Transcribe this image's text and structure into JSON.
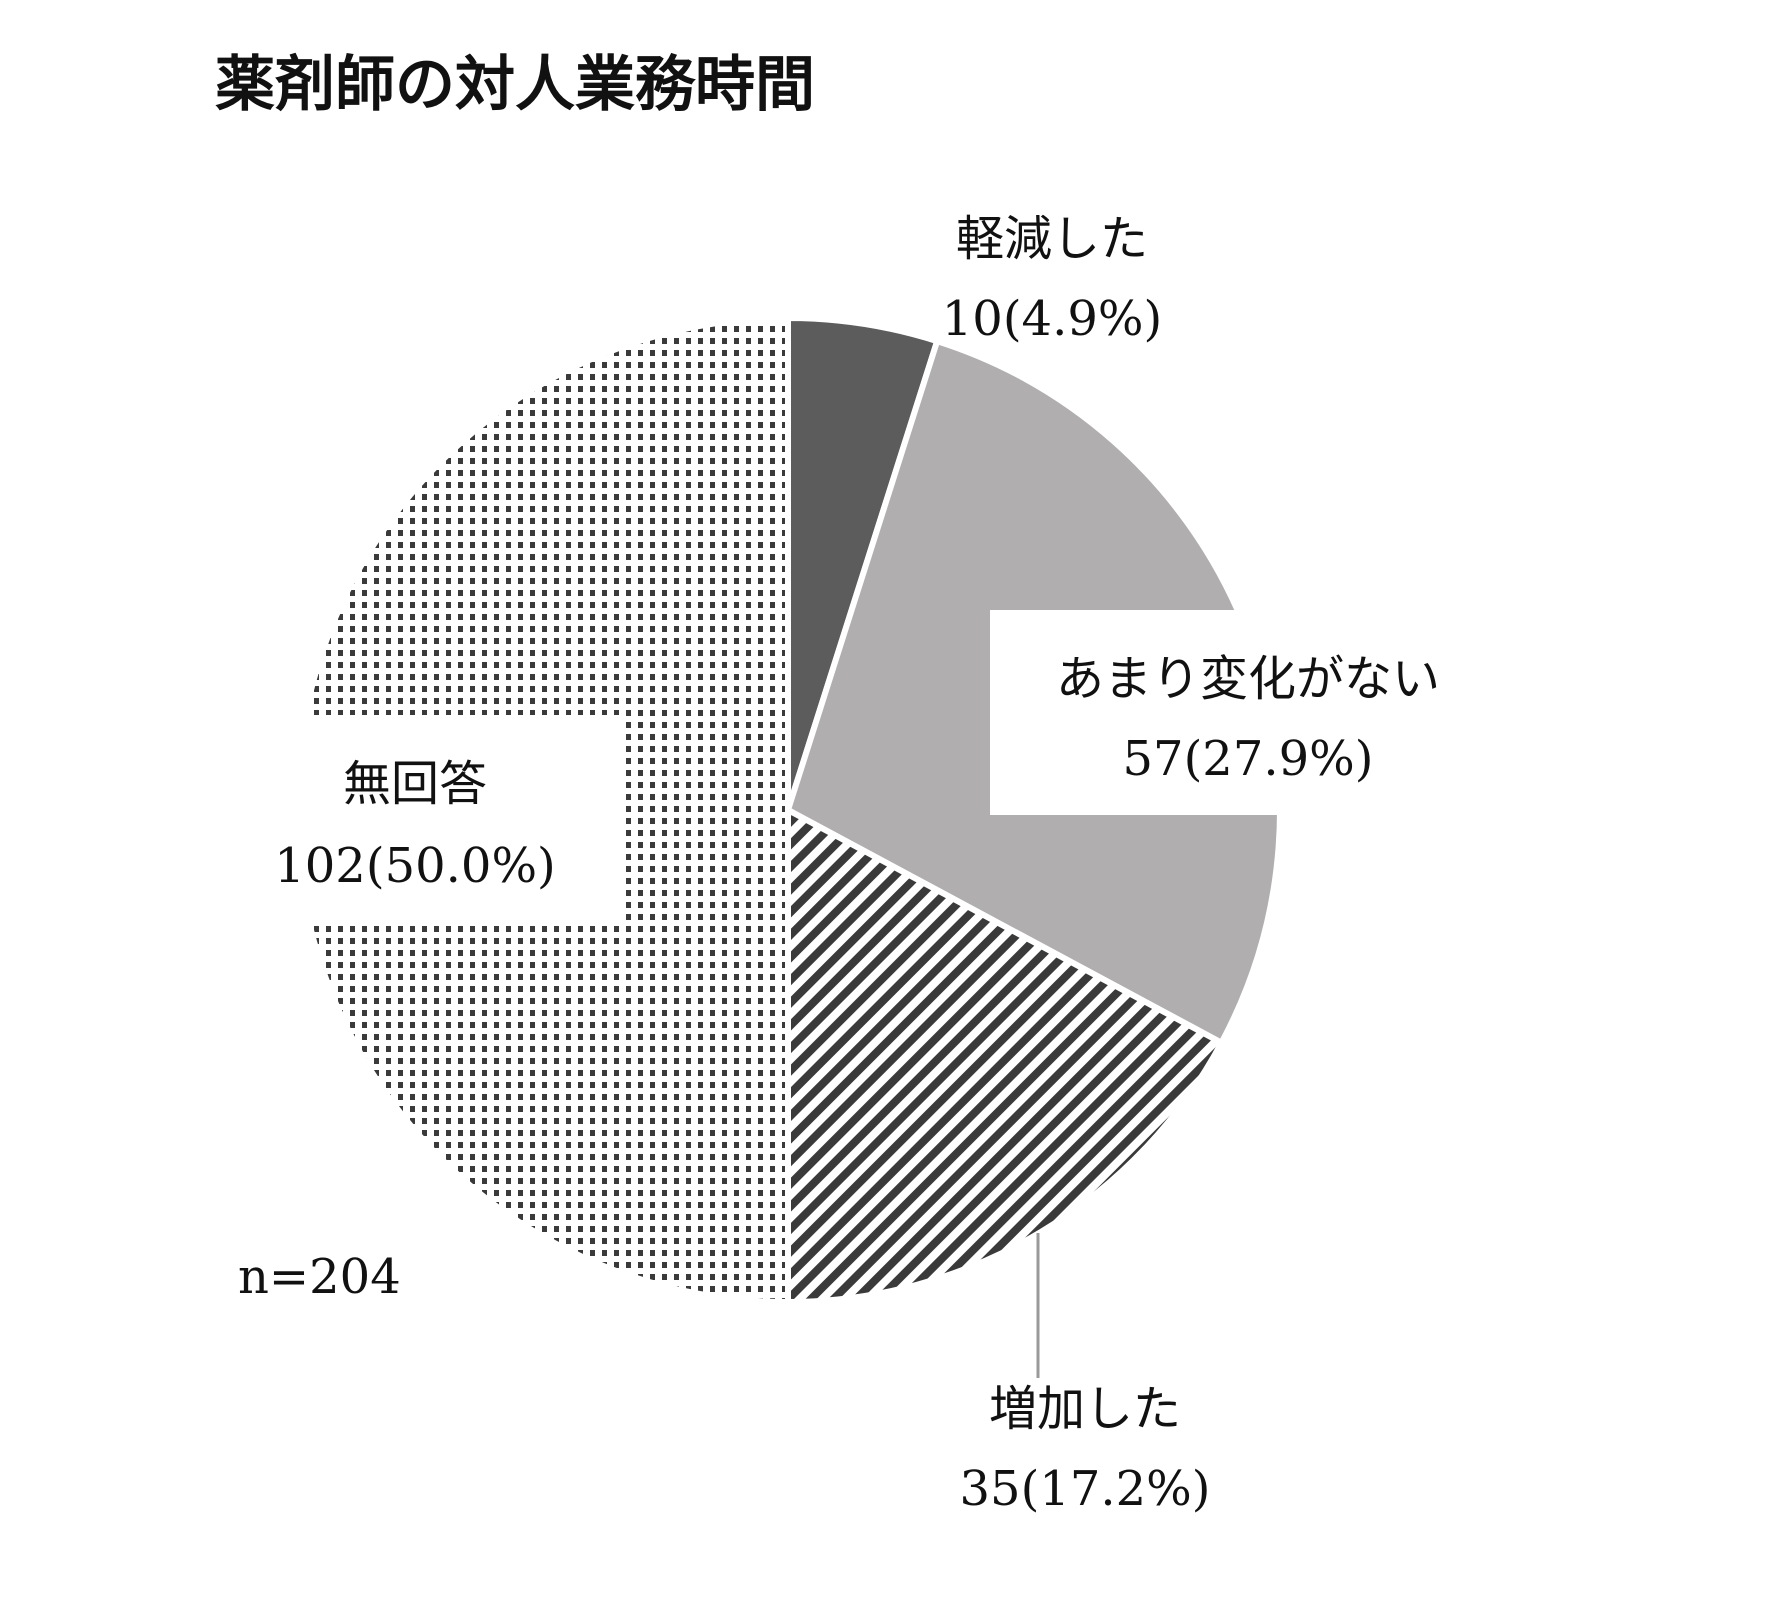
{
  "chart_data": {
    "type": "pie",
    "title": "薬剤師の対人業務時間",
    "note": "n=204",
    "start_angle_deg": 0,
    "direction": "clockwise",
    "slices": [
      {
        "name": "軽減した",
        "value": 10,
        "percent_label": "10(4.9%)",
        "color": "#5c5c5c",
        "pattern": "solid"
      },
      {
        "name": "あまり変化がない",
        "value": 57,
        "percent_label": "57(27.9%)",
        "color": "#b0aeae",
        "pattern": "solid"
      },
      {
        "name": "増加した",
        "value": 35,
        "percent_label": "35(17.2%)",
        "color": "#3a3a3a",
        "pattern": "diagonal-stripes"
      },
      {
        "name": "無回答",
        "value": 102,
        "percent_label": "102(50.0%)",
        "color": "#3a3a3a",
        "pattern": "dots"
      }
    ]
  }
}
